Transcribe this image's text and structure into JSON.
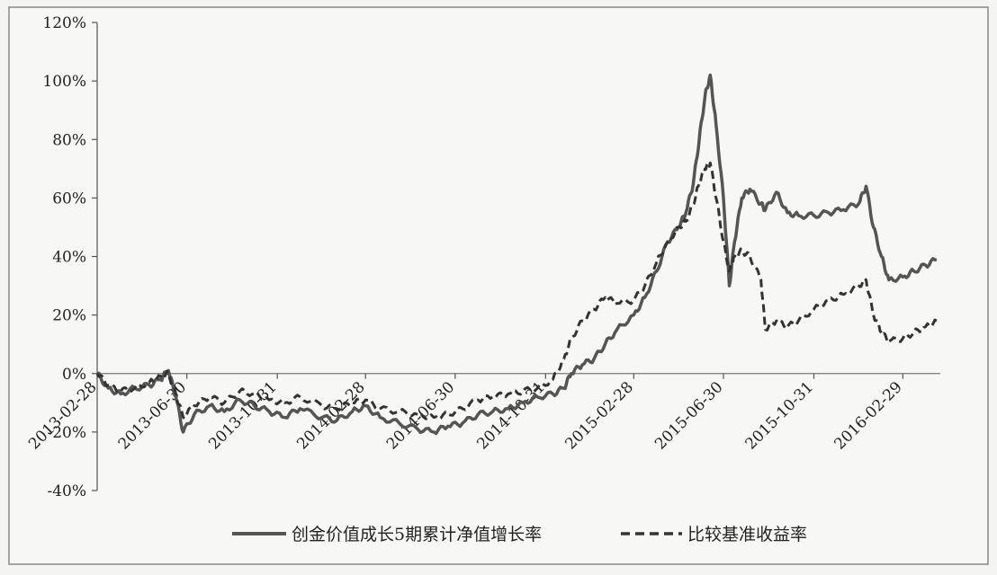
{
  "chart_data": {
    "type": "line",
    "title": "",
    "xlabel": "",
    "ylabel": "",
    "ylim": [
      -40,
      120
    ],
    "yticks": [
      "120%",
      "100%",
      "80%",
      "60%",
      "40%",
      "20%",
      "0%",
      "-20%",
      "-40%"
    ],
    "ytick_values": [
      120,
      100,
      80,
      60,
      40,
      20,
      0,
      -20,
      -40
    ],
    "xlim": [
      "2013-02-28",
      "2016-04-20"
    ],
    "xticks": [
      "2013-02-28",
      "2013-06-30",
      "2013-10-31",
      "2014-02-28",
      "2014-06-30",
      "2014-10-31",
      "2015-02-28",
      "2015-06-30",
      "2015-10-31",
      "2016-02-29"
    ],
    "legend_position": "bottom",
    "grid": false,
    "series": [
      {
        "name": "创金价值成长5期累计净值增长率",
        "style": "solid",
        "color": "#555555",
        "points": [
          [
            "2013-02-28",
            0
          ],
          [
            "2013-03-15",
            -5
          ],
          [
            "2013-04-01",
            -7
          ],
          [
            "2013-04-20",
            -5
          ],
          [
            "2013-05-10",
            -4
          ],
          [
            "2013-05-25",
            -2
          ],
          [
            "2013-06-05",
            1
          ],
          [
            "2013-06-15",
            -8
          ],
          [
            "2013-06-25",
            -20
          ],
          [
            "2013-07-10",
            -14
          ],
          [
            "2013-07-31",
            -11
          ],
          [
            "2013-08-20",
            -13
          ],
          [
            "2013-09-10",
            -9
          ],
          [
            "2013-09-30",
            -11
          ],
          [
            "2013-10-20",
            -13
          ],
          [
            "2013-11-10",
            -15
          ],
          [
            "2013-12-01",
            -12
          ],
          [
            "2013-12-31",
            -15
          ],
          [
            "2014-01-20",
            -16
          ],
          [
            "2014-02-10",
            -13
          ],
          [
            "2014-02-28",
            -11
          ],
          [
            "2014-03-20",
            -15
          ],
          [
            "2014-04-15",
            -17
          ],
          [
            "2014-05-10",
            -19
          ],
          [
            "2014-06-01",
            -20
          ],
          [
            "2014-06-20",
            -18
          ],
          [
            "2014-07-10",
            -17
          ],
          [
            "2014-07-31",
            -14
          ],
          [
            "2014-08-20",
            -13
          ],
          [
            "2014-09-10",
            -12
          ],
          [
            "2014-09-30",
            -10
          ],
          [
            "2014-10-20",
            -8
          ],
          [
            "2014-11-10",
            -7
          ],
          [
            "2014-11-25",
            -5
          ],
          [
            "2014-12-05",
            0
          ],
          [
            "2014-12-20",
            3
          ],
          [
            "2015-01-05",
            5
          ],
          [
            "2015-01-20",
            10
          ],
          [
            "2015-02-05",
            15
          ],
          [
            "2015-02-28",
            20
          ],
          [
            "2015-03-15",
            26
          ],
          [
            "2015-03-31",
            35
          ],
          [
            "2015-04-15",
            45
          ],
          [
            "2015-04-30",
            50
          ],
          [
            "2015-05-10",
            55
          ],
          [
            "2015-05-20",
            65
          ],
          [
            "2015-05-28",
            80
          ],
          [
            "2015-06-05",
            95
          ],
          [
            "2015-06-12",
            102
          ],
          [
            "2015-06-20",
            85
          ],
          [
            "2015-06-30",
            60
          ],
          [
            "2015-07-08",
            30
          ],
          [
            "2015-07-15",
            45
          ],
          [
            "2015-07-25",
            60
          ],
          [
            "2015-08-05",
            63
          ],
          [
            "2015-08-20",
            58
          ],
          [
            "2015-08-26",
            56
          ],
          [
            "2015-09-10",
            62
          ],
          [
            "2015-09-25",
            55
          ],
          [
            "2015-10-10",
            54
          ],
          [
            "2015-10-31",
            54
          ],
          [
            "2015-11-20",
            55
          ],
          [
            "2015-12-10",
            56
          ],
          [
            "2015-12-31",
            58
          ],
          [
            "2016-01-10",
            64
          ],
          [
            "2016-01-20",
            50
          ],
          [
            "2016-01-31",
            40
          ],
          [
            "2016-02-10",
            32
          ],
          [
            "2016-02-29",
            33
          ],
          [
            "2016-03-15",
            35
          ],
          [
            "2016-03-31",
            37
          ],
          [
            "2016-04-15",
            39
          ]
        ]
      },
      {
        "name": "比较基准收益率",
        "style": "dashed",
        "color": "#333333",
        "points": [
          [
            "2013-02-28",
            0
          ],
          [
            "2013-03-15",
            -4
          ],
          [
            "2013-04-01",
            -6
          ],
          [
            "2013-04-20",
            -5
          ],
          [
            "2013-05-10",
            -3
          ],
          [
            "2013-05-25",
            -1
          ],
          [
            "2013-06-05",
            0
          ],
          [
            "2013-06-15",
            -7
          ],
          [
            "2013-06-25",
            -15
          ],
          [
            "2013-07-10",
            -11
          ],
          [
            "2013-07-31",
            -8
          ],
          [
            "2013-08-20",
            -10
          ],
          [
            "2013-09-10",
            -6
          ],
          [
            "2013-09-30",
            -7
          ],
          [
            "2013-10-20",
            -9
          ],
          [
            "2013-11-10",
            -10
          ],
          [
            "2013-12-01",
            -8
          ],
          [
            "2013-12-31",
            -11
          ],
          [
            "2014-01-20",
            -12
          ],
          [
            "2014-02-10",
            -10
          ],
          [
            "2014-02-28",
            -9
          ],
          [
            "2014-03-20",
            -12
          ],
          [
            "2014-04-15",
            -13
          ],
          [
            "2014-05-10",
            -14
          ],
          [
            "2014-06-01",
            -15
          ],
          [
            "2014-06-20",
            -14
          ],
          [
            "2014-07-10",
            -12
          ],
          [
            "2014-07-31",
            -9
          ],
          [
            "2014-08-20",
            -8
          ],
          [
            "2014-09-10",
            -7
          ],
          [
            "2014-09-30",
            -6
          ],
          [
            "2014-10-20",
            -5
          ],
          [
            "2014-11-10",
            -2
          ],
          [
            "2014-11-25",
            5
          ],
          [
            "2014-12-05",
            12
          ],
          [
            "2014-12-20",
            18
          ],
          [
            "2015-01-05",
            22
          ],
          [
            "2015-01-20",
            26
          ],
          [
            "2015-02-05",
            24
          ],
          [
            "2015-02-28",
            25
          ],
          [
            "2015-03-15",
            30
          ],
          [
            "2015-03-31",
            38
          ],
          [
            "2015-04-15",
            45
          ],
          [
            "2015-04-30",
            50
          ],
          [
            "2015-05-10",
            52
          ],
          [
            "2015-05-20",
            58
          ],
          [
            "2015-05-28",
            65
          ],
          [
            "2015-06-05",
            70
          ],
          [
            "2015-06-12",
            72
          ],
          [
            "2015-06-20",
            60
          ],
          [
            "2015-06-30",
            45
          ],
          [
            "2015-07-08",
            35
          ],
          [
            "2015-07-15",
            40
          ],
          [
            "2015-07-25",
            42
          ],
          [
            "2015-08-05",
            40
          ],
          [
            "2015-08-20",
            32
          ],
          [
            "2015-08-26",
            15
          ],
          [
            "2015-09-10",
            18
          ],
          [
            "2015-09-25",
            16
          ],
          [
            "2015-10-10",
            18
          ],
          [
            "2015-10-31",
            22
          ],
          [
            "2015-11-20",
            25
          ],
          [
            "2015-12-10",
            27
          ],
          [
            "2015-12-31",
            30
          ],
          [
            "2016-01-10",
            32
          ],
          [
            "2016-01-20",
            20
          ],
          [
            "2016-01-31",
            14
          ],
          [
            "2016-02-10",
            11
          ],
          [
            "2016-02-29",
            12
          ],
          [
            "2016-03-15",
            14
          ],
          [
            "2016-03-31",
            16
          ],
          [
            "2016-04-15",
            18
          ]
        ]
      }
    ]
  }
}
